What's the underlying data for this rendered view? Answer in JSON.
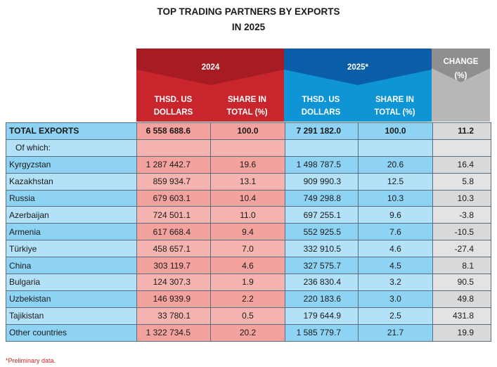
{
  "title": {
    "line1": "TOP TRADING PARTNERS BY EXPORTS",
    "line2": "IN 2025"
  },
  "header": {
    "year2024": "2024",
    "year2025": "2025*",
    "change_line1": "CHANGE",
    "change_line2": "(%)",
    "thsd_line1": "THSD. US",
    "thsd_line2": "DOLLARS",
    "share_line1": "SHARE IN",
    "share_line2": "TOTAL (%)"
  },
  "colors": {
    "red_header": "#c8262c",
    "blue_header": "#0f95d6",
    "grey_header": "#b7b7b7",
    "red_cell": "#f4a29e",
    "blue_cell": "#8fd3f4",
    "grey_cell": "#d9d9d9"
  },
  "total_row": {
    "label": "TOTAL EXPORTS",
    "v2024": "6 558 688.6",
    "s2024": "100.0",
    "v2025": "7 291 182.0",
    "s2025": "100.0",
    "change": "11.2"
  },
  "of_which_label": "Of which:",
  "rows": [
    {
      "country": "Kyrgyzstan",
      "v2024": "1 287 442.7",
      "s2024": "19.6",
      "v2025": "1 498 787.5",
      "s2025": "20.6",
      "change": "16.4"
    },
    {
      "country": "Kazakhstan",
      "v2024": "859 934.7",
      "s2024": "13.1",
      "v2025": "909 990.3",
      "s2025": "12.5",
      "change": "5.8"
    },
    {
      "country": "Russia",
      "v2024": "679 603.1",
      "s2024": "10.4",
      "v2025": "749 298.8",
      "s2025": "10.3",
      "change": "10.3"
    },
    {
      "country": "Azerbaijan",
      "v2024": "724 501.1",
      "s2024": "11.0",
      "v2025": "697 255.1",
      "s2025": "9.6",
      "change": "-3.8"
    },
    {
      "country": "Armenia",
      "v2024": "617 668.4",
      "s2024": "9.4",
      "v2025": "552 925.5",
      "s2025": "7.6",
      "change": "-10.5"
    },
    {
      "country": "Türkiye",
      "v2024": "458 657.1",
      "s2024": "7.0",
      "v2025": "332 910.5",
      "s2025": "4.6",
      "change": "-27.4"
    },
    {
      "country": "China",
      "v2024": "303 119.7",
      "s2024": "4.6",
      "v2025": "327 575.7",
      "s2025": "4.5",
      "change": "8.1"
    },
    {
      "country": "Bulgaria",
      "v2024": "124 307.3",
      "s2024": "1.9",
      "v2025": "236 830.4",
      "s2025": "3.2",
      "change": "90.5"
    },
    {
      "country": "Uzbekistan",
      "v2024": "146 939.9",
      "s2024": "2.2",
      "v2025": "220 183.6",
      "s2025": "3.0",
      "change": "49.8"
    },
    {
      "country": "Tajikistan",
      "v2024": "33 780.1",
      "s2024": "0.5",
      "v2025": "179 644.9",
      "s2025": "2.5",
      "change": "431.8"
    },
    {
      "country": "Other countries",
      "v2024": "1 322 734.5",
      "s2024": "20.2",
      "v2025": "1 585 779.7",
      "s2025": "21.7",
      "change": "19.9"
    }
  ],
  "footnote": "*Preliminary data."
}
